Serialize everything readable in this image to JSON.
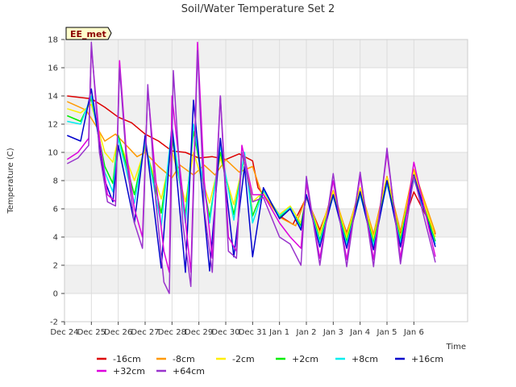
{
  "chart_data": {
    "type": "line",
    "title": "Soil/Water Temperature Set 2",
    "xlabel": "Time",
    "ylabel": "Temperature (C)",
    "site_label": "EE_met",
    "xlim": [
      0,
      15
    ],
    "ylim": [
      -2,
      18
    ],
    "yticks": [
      -2,
      0,
      2,
      4,
      6,
      8,
      10,
      12,
      14,
      16,
      18
    ],
    "xtick_labels": [
      "Dec 24",
      "Dec 25",
      "Dec 26",
      "Dec 27",
      "Dec 28",
      "Dec 29",
      "Dec 30",
      "Dec 31",
      "Jan 1",
      "Jan 2",
      "Jan 3",
      "Jan 4",
      "Jan 5",
      "Jan 6"
    ],
    "grid": true,
    "legend_position": "bottom",
    "series": [
      {
        "name": "-16cm",
        "color": "#dd0000",
        "points": [
          [
            0.1,
            14.0
          ],
          [
            1.0,
            13.8
          ],
          [
            1.5,
            13.2
          ],
          [
            2.0,
            12.5
          ],
          [
            2.5,
            12.1
          ],
          [
            3.0,
            11.3
          ],
          [
            3.5,
            10.8
          ],
          [
            4.0,
            10.1
          ],
          [
            4.5,
            10.0
          ],
          [
            5.0,
            9.6
          ],
          [
            5.5,
            9.7
          ],
          [
            6.0,
            9.5
          ],
          [
            6.5,
            9.9
          ],
          [
            7.0,
            9.4
          ],
          [
            7.2,
            7.5
          ],
          [
            8.0,
            5.5
          ],
          [
            8.5,
            4.9
          ],
          [
            9.0,
            6.8
          ],
          [
            9.5,
            4.5
          ],
          [
            10.0,
            7.0
          ],
          [
            10.5,
            4.3
          ],
          [
            11.0,
            7.3
          ],
          [
            11.5,
            4.2
          ],
          [
            12.0,
            7.8
          ],
          [
            12.5,
            4.3
          ],
          [
            13.0,
            7.2
          ],
          [
            13.8,
            4.2
          ]
        ]
      },
      {
        "name": "-8cm",
        "color": "#ff9900",
        "points": [
          [
            0.1,
            13.6
          ],
          [
            0.8,
            13.0
          ],
          [
            1.2,
            11.8
          ],
          [
            1.5,
            10.8
          ],
          [
            1.9,
            11.3
          ],
          [
            2.3,
            10.5
          ],
          [
            2.7,
            9.7
          ],
          [
            3.0,
            10.0
          ],
          [
            3.5,
            9.0
          ],
          [
            4.0,
            8.2
          ],
          [
            4.3,
            9.1
          ],
          [
            4.8,
            8.4
          ],
          [
            5.2,
            9.1
          ],
          [
            5.6,
            8.4
          ],
          [
            6.0,
            9.5
          ],
          [
            6.5,
            8.6
          ],
          [
            7.0,
            9.0
          ],
          [
            7.3,
            7.3
          ],
          [
            8.0,
            5.4
          ],
          [
            8.6,
            4.8
          ],
          [
            9.0,
            6.9
          ],
          [
            9.5,
            4.3
          ],
          [
            10.0,
            7.3
          ],
          [
            10.5,
            4.2
          ],
          [
            11.0,
            7.5
          ],
          [
            11.5,
            4.2
          ],
          [
            12.0,
            8.3
          ],
          [
            12.5,
            4.4
          ],
          [
            13.0,
            8.8
          ],
          [
            13.8,
            4.3
          ]
        ]
      },
      {
        "name": "-2cm",
        "color": "#ffee00",
        "points": [
          [
            0.1,
            13.1
          ],
          [
            0.6,
            12.8
          ],
          [
            1.0,
            13.4
          ],
          [
            1.5,
            10.0
          ],
          [
            1.8,
            9.3
          ],
          [
            2.0,
            11.0
          ],
          [
            2.6,
            8.0
          ],
          [
            3.0,
            10.3
          ],
          [
            3.6,
            6.7
          ],
          [
            4.0,
            10.1
          ],
          [
            4.5,
            6.5
          ],
          [
            4.8,
            10.0
          ],
          [
            5.4,
            6.4
          ],
          [
            5.8,
            9.6
          ],
          [
            6.3,
            6.3
          ],
          [
            6.7,
            9.6
          ],
          [
            7.0,
            6.5
          ],
          [
            7.4,
            7.2
          ],
          [
            8.0,
            5.6
          ],
          [
            8.4,
            6.2
          ],
          [
            8.8,
            5.0
          ],
          [
            9.0,
            6.9
          ],
          [
            9.5,
            4.2
          ],
          [
            10.0,
            7.2
          ],
          [
            10.5,
            4.0
          ],
          [
            11.0,
            7.5
          ],
          [
            11.5,
            3.9
          ],
          [
            12.0,
            8.2
          ],
          [
            12.5,
            4.0
          ],
          [
            13.0,
            8.6
          ],
          [
            13.8,
            4.0
          ]
        ]
      },
      {
        "name": "+2cm",
        "color": "#00ee00",
        "points": [
          [
            0.1,
            12.6
          ],
          [
            0.6,
            12.2
          ],
          [
            1.0,
            13.8
          ],
          [
            1.5,
            9.0
          ],
          [
            1.8,
            7.8
          ],
          [
            2.0,
            11.2
          ],
          [
            2.6,
            7.0
          ],
          [
            3.0,
            10.6
          ],
          [
            3.6,
            5.7
          ],
          [
            4.0,
            11.0
          ],
          [
            4.5,
            5.6
          ],
          [
            4.8,
            11.5
          ],
          [
            5.4,
            5.4
          ],
          [
            5.8,
            10.0
          ],
          [
            6.3,
            5.6
          ],
          [
            6.7,
            9.8
          ],
          [
            7.0,
            5.5
          ],
          [
            7.4,
            7.4
          ],
          [
            8.0,
            5.4
          ],
          [
            8.4,
            6.0
          ],
          [
            8.8,
            4.8
          ],
          [
            9.0,
            7.0
          ],
          [
            9.5,
            3.8
          ],
          [
            10.0,
            7.0
          ],
          [
            10.5,
            3.7
          ],
          [
            11.0,
            7.2
          ],
          [
            11.5,
            3.6
          ],
          [
            12.0,
            8.0
          ],
          [
            12.5,
            3.8
          ],
          [
            13.0,
            8.3
          ],
          [
            13.8,
            3.7
          ]
        ]
      },
      {
        "name": "+8cm",
        "color": "#00eeee",
        "points": [
          [
            0.1,
            12.2
          ],
          [
            0.6,
            12.0
          ],
          [
            1.0,
            14.0
          ],
          [
            1.5,
            8.6
          ],
          [
            1.8,
            7.2
          ],
          [
            2.0,
            11.0
          ],
          [
            2.6,
            6.4
          ],
          [
            3.0,
            10.8
          ],
          [
            3.6,
            4.8
          ],
          [
            4.0,
            11.8
          ],
          [
            4.5,
            5.0
          ],
          [
            4.8,
            12.0
          ],
          [
            5.4,
            5.0
          ],
          [
            5.8,
            10.5
          ],
          [
            6.3,
            5.2
          ],
          [
            6.7,
            10.0
          ],
          [
            7.0,
            5.0
          ],
          [
            7.4,
            7.3
          ],
          [
            8.0,
            5.5
          ],
          [
            8.4,
            6.1
          ],
          [
            8.8,
            4.6
          ],
          [
            9.0,
            7.0
          ],
          [
            9.5,
            3.6
          ],
          [
            10.0,
            6.9
          ],
          [
            10.5,
            3.5
          ],
          [
            11.0,
            7.0
          ],
          [
            11.5,
            3.4
          ],
          [
            12.0,
            7.8
          ],
          [
            12.5,
            3.6
          ],
          [
            13.0,
            8.1
          ],
          [
            13.8,
            3.5
          ]
        ]
      },
      {
        "name": "+16cm",
        "color": "#0000cc",
        "points": [
          [
            0.1,
            11.2
          ],
          [
            0.6,
            10.8
          ],
          [
            1.0,
            14.5
          ],
          [
            1.5,
            8.0
          ],
          [
            1.8,
            6.5
          ],
          [
            2.0,
            10.5
          ],
          [
            2.6,
            5.0
          ],
          [
            3.0,
            11.2
          ],
          [
            3.6,
            1.8
          ],
          [
            4.0,
            12.0
          ],
          [
            4.5,
            1.5
          ],
          [
            4.8,
            13.7
          ],
          [
            5.4,
            1.6
          ],
          [
            5.8,
            11.0
          ],
          [
            6.3,
            2.6
          ],
          [
            6.7,
            9.0
          ],
          [
            7.0,
            2.6
          ],
          [
            7.4,
            7.5
          ],
          [
            8.0,
            5.3
          ],
          [
            8.4,
            6.0
          ],
          [
            8.8,
            4.5
          ],
          [
            9.0,
            7.0
          ],
          [
            9.5,
            3.3
          ],
          [
            10.0,
            7.0
          ],
          [
            10.5,
            3.2
          ],
          [
            11.0,
            7.2
          ],
          [
            11.5,
            3.1
          ],
          [
            12.0,
            8.0
          ],
          [
            12.5,
            3.3
          ],
          [
            13.0,
            8.4
          ],
          [
            13.8,
            3.3
          ]
        ]
      },
      {
        "name": "+32cm",
        "color": "#dd00dd",
        "points": [
          [
            0.1,
            9.5
          ],
          [
            0.5,
            10.0
          ],
          [
            0.9,
            11.0
          ],
          [
            1.0,
            17.5
          ],
          [
            1.3,
            11.0
          ],
          [
            1.6,
            7.0
          ],
          [
            1.9,
            6.5
          ],
          [
            2.05,
            16.5
          ],
          [
            2.3,
            10.0
          ],
          [
            2.6,
            6.0
          ],
          [
            2.9,
            4.0
          ],
          [
            3.1,
            14.5
          ],
          [
            3.4,
            8.0
          ],
          [
            3.7,
            3.0
          ],
          [
            3.9,
            1.5
          ],
          [
            4.0,
            14.0
          ],
          [
            4.4,
            7.0
          ],
          [
            4.7,
            1.5
          ],
          [
            4.95,
            17.8
          ],
          [
            5.2,
            8.0
          ],
          [
            5.5,
            2.5
          ],
          [
            5.8,
            14.0
          ],
          [
            6.1,
            4.0
          ],
          [
            6.4,
            3.0
          ],
          [
            6.6,
            10.5
          ],
          [
            7.0,
            7.0
          ],
          [
            7.4,
            7.0
          ],
          [
            8.0,
            5.0
          ],
          [
            8.4,
            4.0
          ],
          [
            8.8,
            3.2
          ],
          [
            9.0,
            7.8
          ],
          [
            9.5,
            2.5
          ],
          [
            10.0,
            8.0
          ],
          [
            10.5,
            2.4
          ],
          [
            11.0,
            8.3
          ],
          [
            11.5,
            2.4
          ],
          [
            12.0,
            10.0
          ],
          [
            12.5,
            2.5
          ],
          [
            13.0,
            9.3
          ],
          [
            13.8,
            2.6
          ]
        ]
      },
      {
        "name": "+64cm",
        "color": "#9933cc",
        "points": [
          [
            0.1,
            9.2
          ],
          [
            0.5,
            9.6
          ],
          [
            0.9,
            10.5
          ],
          [
            1.0,
            17.8
          ],
          [
            1.3,
            10.0
          ],
          [
            1.6,
            6.5
          ],
          [
            1.9,
            6.2
          ],
          [
            2.05,
            16.0
          ],
          [
            2.3,
            9.5
          ],
          [
            2.6,
            5.0
          ],
          [
            2.9,
            3.2
          ],
          [
            3.1,
            14.8
          ],
          [
            3.4,
            6.5
          ],
          [
            3.7,
            0.8
          ],
          [
            3.9,
            0.0
          ],
          [
            4.05,
            15.8
          ],
          [
            4.4,
            5.0
          ],
          [
            4.7,
            0.5
          ],
          [
            4.95,
            17.2
          ],
          [
            5.2,
            6.0
          ],
          [
            5.5,
            1.5
          ],
          [
            5.8,
            14.0
          ],
          [
            6.1,
            3.0
          ],
          [
            6.4,
            2.5
          ],
          [
            6.6,
            10.0
          ],
          [
            7.0,
            6.5
          ],
          [
            7.4,
            6.8
          ],
          [
            8.0,
            4.0
          ],
          [
            8.4,
            3.5
          ],
          [
            8.8,
            2.0
          ],
          [
            9.0,
            8.3
          ],
          [
            9.5,
            2.0
          ],
          [
            10.0,
            8.5
          ],
          [
            10.5,
            1.9
          ],
          [
            11.0,
            8.6
          ],
          [
            11.5,
            1.9
          ],
          [
            12.0,
            10.3
          ],
          [
            12.5,
            2.1
          ],
          [
            13.0,
            8.3
          ],
          [
            13.8,
            2.2
          ]
        ]
      }
    ]
  }
}
